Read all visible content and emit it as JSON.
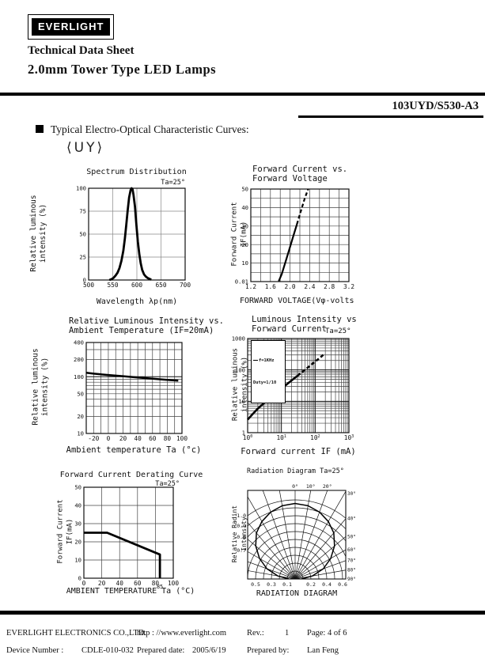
{
  "header": {
    "logo_text": "EVERLIGHT",
    "title_line1": "Technical Data Sheet",
    "title_line2": "2.0mm Tower Type LED Lamps",
    "part_number": "103UYD/S530-A3",
    "section_heading": "Typical Electro-Optical Characteristic Curves:",
    "variant_label": "⟨UY⟩"
  },
  "footer": {
    "company": "EVERLIGHT ELECTRONICS CO.,LTD.",
    "website": "http : //www.everlight.com",
    "rev_label": "Rev.:",
    "rev_value": "1",
    "page_label": "Page: 4 of 6",
    "device_label": "Device Number :",
    "device_value": "CDLE-010-032",
    "prepared_date_label": "Prepared date:",
    "prepared_date_value": "2005/6/19",
    "prepared_by_label": "Prepared by:",
    "prepared_by_value": "Lan Feng"
  },
  "chart_data": [
    {
      "id": "spectrum",
      "type": "line",
      "title": "Spectrum Distribution",
      "annotation": "Ta=25°",
      "xlabel": "Wavelength λp(nm)",
      "ylabel": "Relative luminous intensity (%)",
      "xlim": [
        500,
        700
      ],
      "ylim": [
        0,
        100
      ],
      "grid_color": "#888",
      "xticks": [
        {
          "v": 500,
          "label": "500"
        },
        {
          "v": 550,
          "label": "550"
        },
        {
          "v": 600,
          "label": "600"
        },
        {
          "v": 650,
          "label": "650"
        },
        {
          "v": 700,
          "label": "700"
        }
      ],
      "yticks": [
        {
          "v": 0,
          "label": "0"
        },
        {
          "v": 25,
          "label": "25"
        },
        {
          "v": 50,
          "label": "50"
        },
        {
          "v": 75,
          "label": "75"
        },
        {
          "v": 100,
          "label": "100"
        }
      ],
      "xgrid": [
        550,
        600,
        650
      ],
      "ygrid": [
        25,
        50,
        75
      ],
      "lw": 2.8,
      "series": [
        {
          "name": "relative intensity vs wavelength",
          "dash": false,
          "points": [
            [
              543,
              0
            ],
            [
              548,
              1
            ],
            [
              552,
              2.5
            ],
            [
              556,
              5
            ],
            [
              560,
              8
            ],
            [
              564,
              13
            ],
            [
              568,
              21
            ],
            [
              572,
              32
            ],
            [
              575,
              45
            ],
            [
              578,
              60
            ],
            [
              581,
              76
            ],
            [
              584,
              90
            ],
            [
              587,
              98
            ],
            [
              589,
              100
            ],
            [
              591,
              99
            ],
            [
              593,
              93
            ],
            [
              596,
              80
            ],
            [
              599,
              60
            ],
            [
              602,
              42
            ],
            [
              605,
              28
            ],
            [
              608,
              18
            ],
            [
              611,
              11
            ],
            [
              615,
              6
            ],
            [
              619,
              3.5
            ],
            [
              623,
              2
            ],
            [
              627,
              1
            ],
            [
              630,
              0.5
            ]
          ]
        }
      ]
    },
    {
      "id": "iv-curve",
      "type": "line",
      "title": "Forward Current vs.\nForward Voltage",
      "annotation": "",
      "xlabel": "FORWARD VOLTAGE(Vφ-volts",
      "ylabel": "Forward Current IF(mA)",
      "xlim": [
        1.2,
        3.2
      ],
      "ylim": [
        0,
        50
      ],
      "xticks": [
        {
          "v": 1.2,
          "label": "1.2"
        },
        {
          "v": 1.6,
          "label": "1.6"
        },
        {
          "v": 2.0,
          "label": "2.0"
        },
        {
          "v": 2.4,
          "label": "2.4"
        },
        {
          "v": 2.8,
          "label": "2.8"
        },
        {
          "v": 3.2,
          "label": "3.2"
        }
      ],
      "yticks": [
        {
          "v": 0,
          "label": "0.01"
        },
        {
          "v": 10,
          "label": "10"
        },
        {
          "v": 20,
          "label": "20"
        },
        {
          "v": 30,
          "label": "30"
        },
        {
          "v": 40,
          "label": "40"
        },
        {
          "v": 50,
          "label": "50"
        }
      ],
      "xgrid": [
        1.4,
        1.6,
        1.8,
        2.0,
        2.2,
        2.4,
        2.6,
        2.8,
        3.0
      ],
      "ygrid": [
        5,
        10,
        15,
        20,
        25,
        30,
        35,
        40,
        45
      ],
      "lw": 2.2,
      "series": [
        {
          "name": "IF vs VF solid",
          "dash": false,
          "points": [
            [
              1.77,
              0.2
            ],
            [
              1.83,
              4
            ],
            [
              1.9,
              10
            ],
            [
              1.98,
              17
            ],
            [
              2.06,
              24
            ],
            [
              2.14,
              31
            ]
          ]
        },
        {
          "name": "IF vs VF dashed",
          "dash": true,
          "points": [
            [
              2.14,
              31
            ],
            [
              2.22,
              38
            ],
            [
              2.3,
              45
            ],
            [
              2.37,
              50
            ]
          ]
        }
      ]
    },
    {
      "id": "intensity-vs-temperature",
      "type": "line",
      "title": "Relative Luminous Intensity vs.\nAmbient Temperature  (IF=20mA)",
      "annotation": "",
      "xlabel": "Ambient temperature Ta (°c)",
      "ylabel": "Relative luminous intensity (%)",
      "xlim": [
        -30,
        100
      ],
      "ylim": [
        10,
        400
      ],
      "yscale": "log",
      "xticks": [
        {
          "v": -20,
          "label": "-20"
        },
        {
          "v": 0,
          "label": "0"
        },
        {
          "v": 20,
          "label": "20"
        },
        {
          "v": 40,
          "label": "40"
        },
        {
          "v": 60,
          "label": "60"
        },
        {
          "v": 80,
          "label": "80"
        },
        {
          "v": 100,
          "label": "100"
        }
      ],
      "yticks": [
        {
          "v": 10,
          "label": "10"
        },
        {
          "v": 20,
          "label": "20"
        },
        {
          "v": 50,
          "label": "50"
        },
        {
          "v": 100,
          "label": "100"
        },
        {
          "v": 200,
          "label": "200"
        },
        {
          "v": 400,
          "label": "400"
        }
      ],
      "xgrid": [
        -20,
        -10,
        0,
        10,
        20,
        30,
        40,
        50,
        60,
        70,
        80,
        90
      ],
      "ygrid": [
        20,
        30,
        40,
        50,
        60,
        70,
        80,
        90,
        200,
        300
      ],
      "ygrid_major": [
        100
      ],
      "lw": 2.5,
      "series": [
        {
          "name": "relative intensity vs Ta (IF=20mA)",
          "dash": false,
          "points": [
            [
              -30,
              117
            ],
            [
              -20,
              113
            ],
            [
              0,
              107
            ],
            [
              20,
              102
            ],
            [
              40,
              97
            ],
            [
              60,
              92
            ],
            [
              80,
              88
            ],
            [
              95,
              85
            ]
          ]
        }
      ]
    },
    {
      "id": "intensity-vs-current",
      "type": "line",
      "title": "Luminous Intensity vs\nForward Current",
      "annotation": "Ta=25°",
      "xlabel": "Forward current IF (mA)",
      "ylabel": "Relative luminous intensity (%)",
      "legend": {
        "line1": "f=1KHz",
        "line2": "Duty=1/10"
      },
      "xlim": [
        1,
        1000
      ],
      "ylim": [
        1,
        1000
      ],
      "xscale": "log",
      "yscale": "log",
      "xticks": [
        {
          "v": 1,
          "label": "10",
          "sup": "0"
        },
        {
          "v": 10,
          "label": "10",
          "sup": "1"
        },
        {
          "v": 100,
          "label": "10",
          "sup": "2"
        },
        {
          "v": 1000,
          "label": "10",
          "sup": "3"
        }
      ],
      "yticks": [
        {
          "v": 1,
          "label": "1"
        },
        {
          "v": 10,
          "label": "10"
        },
        {
          "v": 100,
          "label": "100"
        },
        {
          "v": 1000,
          "label": "1000"
        }
      ],
      "xgrid": [
        2,
        3,
        4,
        5,
        6,
        7,
        8,
        9,
        20,
        30,
        40,
        50,
        60,
        70,
        80,
        90,
        200,
        300,
        400,
        500,
        600,
        700,
        800,
        900
      ],
      "xgrid_major": [
        10,
        100
      ],
      "ygrid": [
        2,
        3,
        4,
        5,
        6,
        7,
        8,
        9,
        20,
        30,
        40,
        50,
        60,
        70,
        80,
        90,
        200,
        300,
        400,
        500,
        600,
        700,
        800,
        900
      ],
      "ygrid_major": [
        10,
        100
      ],
      "lw": 2.6,
      "series": [
        {
          "name": "luminous intensity vs IF solid",
          "dash": false,
          "points": [
            [
              1,
              2.6
            ],
            [
              1.5,
              4.2
            ],
            [
              2,
              5.8
            ],
            [
              3,
              8.6
            ],
            [
              5,
              13.5
            ],
            [
              7,
              18
            ],
            [
              10,
              25
            ],
            [
              15,
              36
            ],
            [
              20,
              46
            ],
            [
              30,
              65
            ]
          ]
        },
        {
          "name": "luminous intensity vs IF dashed",
          "dash": true,
          "points": [
            [
              30,
              65
            ],
            [
              45,
              92
            ],
            [
              70,
              135
            ],
            [
              100,
              185
            ],
            [
              140,
              245
            ],
            [
              190,
              330
            ]
          ]
        }
      ]
    },
    {
      "id": "derating",
      "type": "line",
      "title": "Forward Current Derating Curve",
      "annotation": "Ta=25°",
      "xlabel": "AMBIENT TEMPERATURE Ta (°C)",
      "ylabel": "Forward Current IF(mA)",
      "xlim": [
        0,
        100
      ],
      "ylim": [
        0,
        50
      ],
      "xticks": [
        {
          "v": 0,
          "label": "0"
        },
        {
          "v": 20,
          "label": "20"
        },
        {
          "v": 40,
          "label": "40"
        },
        {
          "v": 60,
          "label": "60"
        },
        {
          "v": 80,
          "label": "80"
        },
        {
          "v": 85,
          "label": "85",
          "small": true,
          "dy": 4
        },
        {
          "v": 100,
          "label": "100"
        }
      ],
      "yticks": [
        {
          "v": 0,
          "label": "0"
        },
        {
          "v": 10,
          "label": "10"
        },
        {
          "v": 20,
          "label": "20"
        },
        {
          "v": 30,
          "label": "30"
        },
        {
          "v": 40,
          "label": "40"
        },
        {
          "v": 50,
          "label": "50"
        }
      ],
      "xgrid": [
        20,
        40,
        60,
        80
      ],
      "ygrid": [
        10,
        20,
        30,
        40
      ],
      "lw": 2.8,
      "series": [
        {
          "name": "max IF vs Ta",
          "dash": false,
          "points": [
            [
              0,
              25
            ],
            [
              26,
              25
            ],
            [
              85,
              13
            ],
            [
              85,
              0
            ]
          ]
        }
      ]
    },
    {
      "id": "radiation",
      "type": "polar",
      "title": "Radiation Diagram Ta=25°",
      "xlabel": "RADIATION DIAGRAM",
      "ylabel": "Relative Radint Intensity",
      "rings": [
        0.1,
        0.2,
        0.3,
        0.4,
        0.5,
        0.6,
        0.7,
        0.8,
        0.9,
        1.0
      ],
      "ray_step": 10,
      "top_angle_labels": [
        0,
        10,
        20
      ],
      "right_angle_labels": [
        30,
        40,
        50,
        60,
        70,
        80,
        90
      ],
      "left_r_labels": [
        1.0,
        0.9,
        0.8,
        0.7
      ],
      "bottom_r_labels": [
        {
          "x": -0.5,
          "label": "0.5"
        },
        {
          "x": -0.3,
          "label": "0.3"
        },
        {
          "x": -0.1,
          "label": "0.1"
        },
        {
          "x": 0.2,
          "label": "0.2"
        },
        {
          "x": 0.4,
          "label": "0.4"
        },
        {
          "x": 0.6,
          "label": "0.6"
        }
      ],
      "pattern": [
        [
          -90,
          0.08
        ],
        [
          -80,
          0.22
        ],
        [
          -70,
          0.38
        ],
        [
          -60,
          0.52
        ],
        [
          -50,
          0.65
        ],
        [
          -40,
          0.76
        ],
        [
          -30,
          0.84
        ],
        [
          -20,
          0.9
        ],
        [
          -10,
          0.94
        ],
        [
          0,
          0.955
        ],
        [
          10,
          0.94
        ],
        [
          20,
          0.9
        ],
        [
          30,
          0.84
        ],
        [
          40,
          0.76
        ],
        [
          50,
          0.65
        ],
        [
          60,
          0.52
        ],
        [
          70,
          0.38
        ],
        [
          80,
          0.22
        ],
        [
          90,
          0.08
        ]
      ]
    }
  ]
}
